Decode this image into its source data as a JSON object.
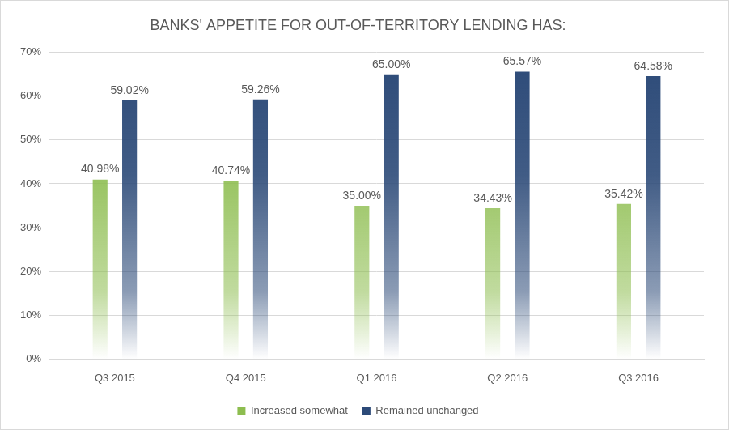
{
  "chart_data": {
    "type": "bar",
    "title": "BANKS' APPETITE FOR OUT-OF-TERRITORY LENDING HAS:",
    "categories": [
      "Q3 2015",
      "Q4 2015",
      "Q1 2016",
      "Q2 2016",
      "Q3 2016"
    ],
    "series": [
      {
        "name": "Increased somewhat",
        "color": "#8dbd4f",
        "values": [
          40.98,
          40.74,
          35.0,
          34.43,
          35.42
        ],
        "value_labels": [
          "40.98%",
          "40.74%",
          "35.00%",
          "34.43%",
          "35.42%"
        ]
      },
      {
        "name": "Remained unchanged",
        "color": "#2c4a78",
        "values": [
          59.02,
          59.26,
          65.0,
          65.57,
          64.58
        ],
        "value_labels": [
          "59.02%",
          "59.26%",
          "65.00%",
          "65.57%",
          "64.58%"
        ]
      }
    ],
    "ylim": [
      0,
      70
    ],
    "yticks": [
      {
        "value": 0,
        "label": "0%"
      },
      {
        "value": 10,
        "label": "10%"
      },
      {
        "value": 20,
        "label": "20%"
      },
      {
        "value": 30,
        "label": "30%"
      },
      {
        "value": 40,
        "label": "40%"
      },
      {
        "value": 50,
        "label": "50%"
      },
      {
        "value": 60,
        "label": "60%"
      },
      {
        "value": 70,
        "label": "70%"
      }
    ],
    "grid": true,
    "legend": "bottom",
    "data_labels": true
  }
}
